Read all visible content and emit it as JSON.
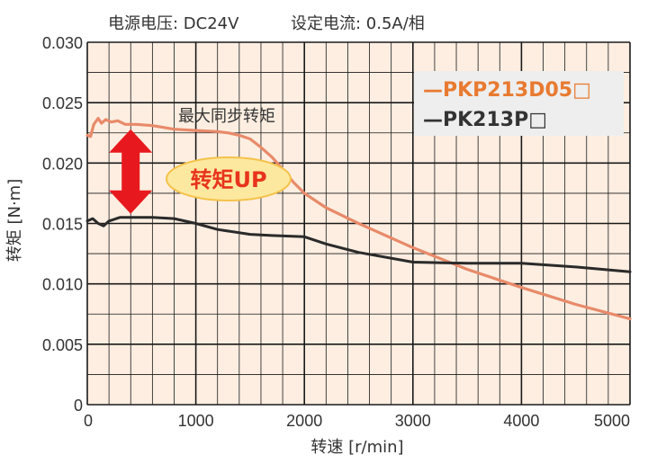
{
  "conditions": {
    "voltage": "电源电压: DC24V",
    "current": "设定电流: 0.5A/相"
  },
  "annotations": {
    "max_sync_torque": "最大同步转矩",
    "torque_up": "转矩UP"
  },
  "colors": {
    "background": "#fdeee1",
    "grid": "#1a1a1a",
    "series_new": "#e88a6a",
    "series_old": "#2a2a2a",
    "legend_new_text": "#e87a30",
    "legend_old_text": "#333333",
    "legend_bg": "#eeeeee",
    "arrow": "#e8191e",
    "badge_fill": "#fde8a0",
    "badge_stroke": "#f5c24a"
  },
  "chart_data": {
    "type": "line",
    "title": "",
    "xlabel": "转速 [r/min]",
    "ylabel": "转矩 [N·m]",
    "xlim": [
      0,
      5000
    ],
    "ylim": [
      0,
      0.03
    ],
    "x_ticks": [
      "0",
      "1000",
      "2000",
      "3000",
      "4000",
      "5000"
    ],
    "y_ticks": [
      "0",
      "0.005",
      "0.010",
      "0.015",
      "0.020",
      "0.025",
      "0.030"
    ],
    "grid": true,
    "legend_position": "top-right",
    "series": [
      {
        "name": "—PKP213D05□",
        "color": "#e88a6a",
        "x": [
          0,
          30,
          60,
          100,
          130,
          170,
          220,
          280,
          350,
          450,
          600,
          800,
          1000,
          1200,
          1300,
          1400,
          1500,
          1600,
          1700,
          1800,
          1900,
          2000,
          2200,
          2500,
          3000,
          3500,
          4000,
          4500,
          5000
        ],
        "y": [
          0.0223,
          0.0222,
          0.0232,
          0.0237,
          0.0233,
          0.0236,
          0.0234,
          0.0235,
          0.0232,
          0.0232,
          0.0231,
          0.0228,
          0.0227,
          0.0226,
          0.0225,
          0.0223,
          0.022,
          0.0213,
          0.0205,
          0.0195,
          0.0184,
          0.0175,
          0.0163,
          0.015,
          0.013,
          0.0112,
          0.0097,
          0.0083,
          0.0071
        ]
      },
      {
        "name": "—PK213P□",
        "color": "#2a2a2a",
        "x": [
          0,
          50,
          100,
          150,
          200,
          300,
          400,
          600,
          800,
          1000,
          1200,
          1500,
          1700,
          2000,
          2200,
          2500,
          3000,
          3500,
          4000,
          4500,
          5000
        ],
        "y": [
          0.0152,
          0.0154,
          0.015,
          0.0148,
          0.0152,
          0.0155,
          0.0155,
          0.0155,
          0.0154,
          0.015,
          0.0145,
          0.0141,
          0.014,
          0.0139,
          0.0133,
          0.0126,
          0.0118,
          0.0117,
          0.0117,
          0.0114,
          0.011
        ]
      }
    ]
  }
}
